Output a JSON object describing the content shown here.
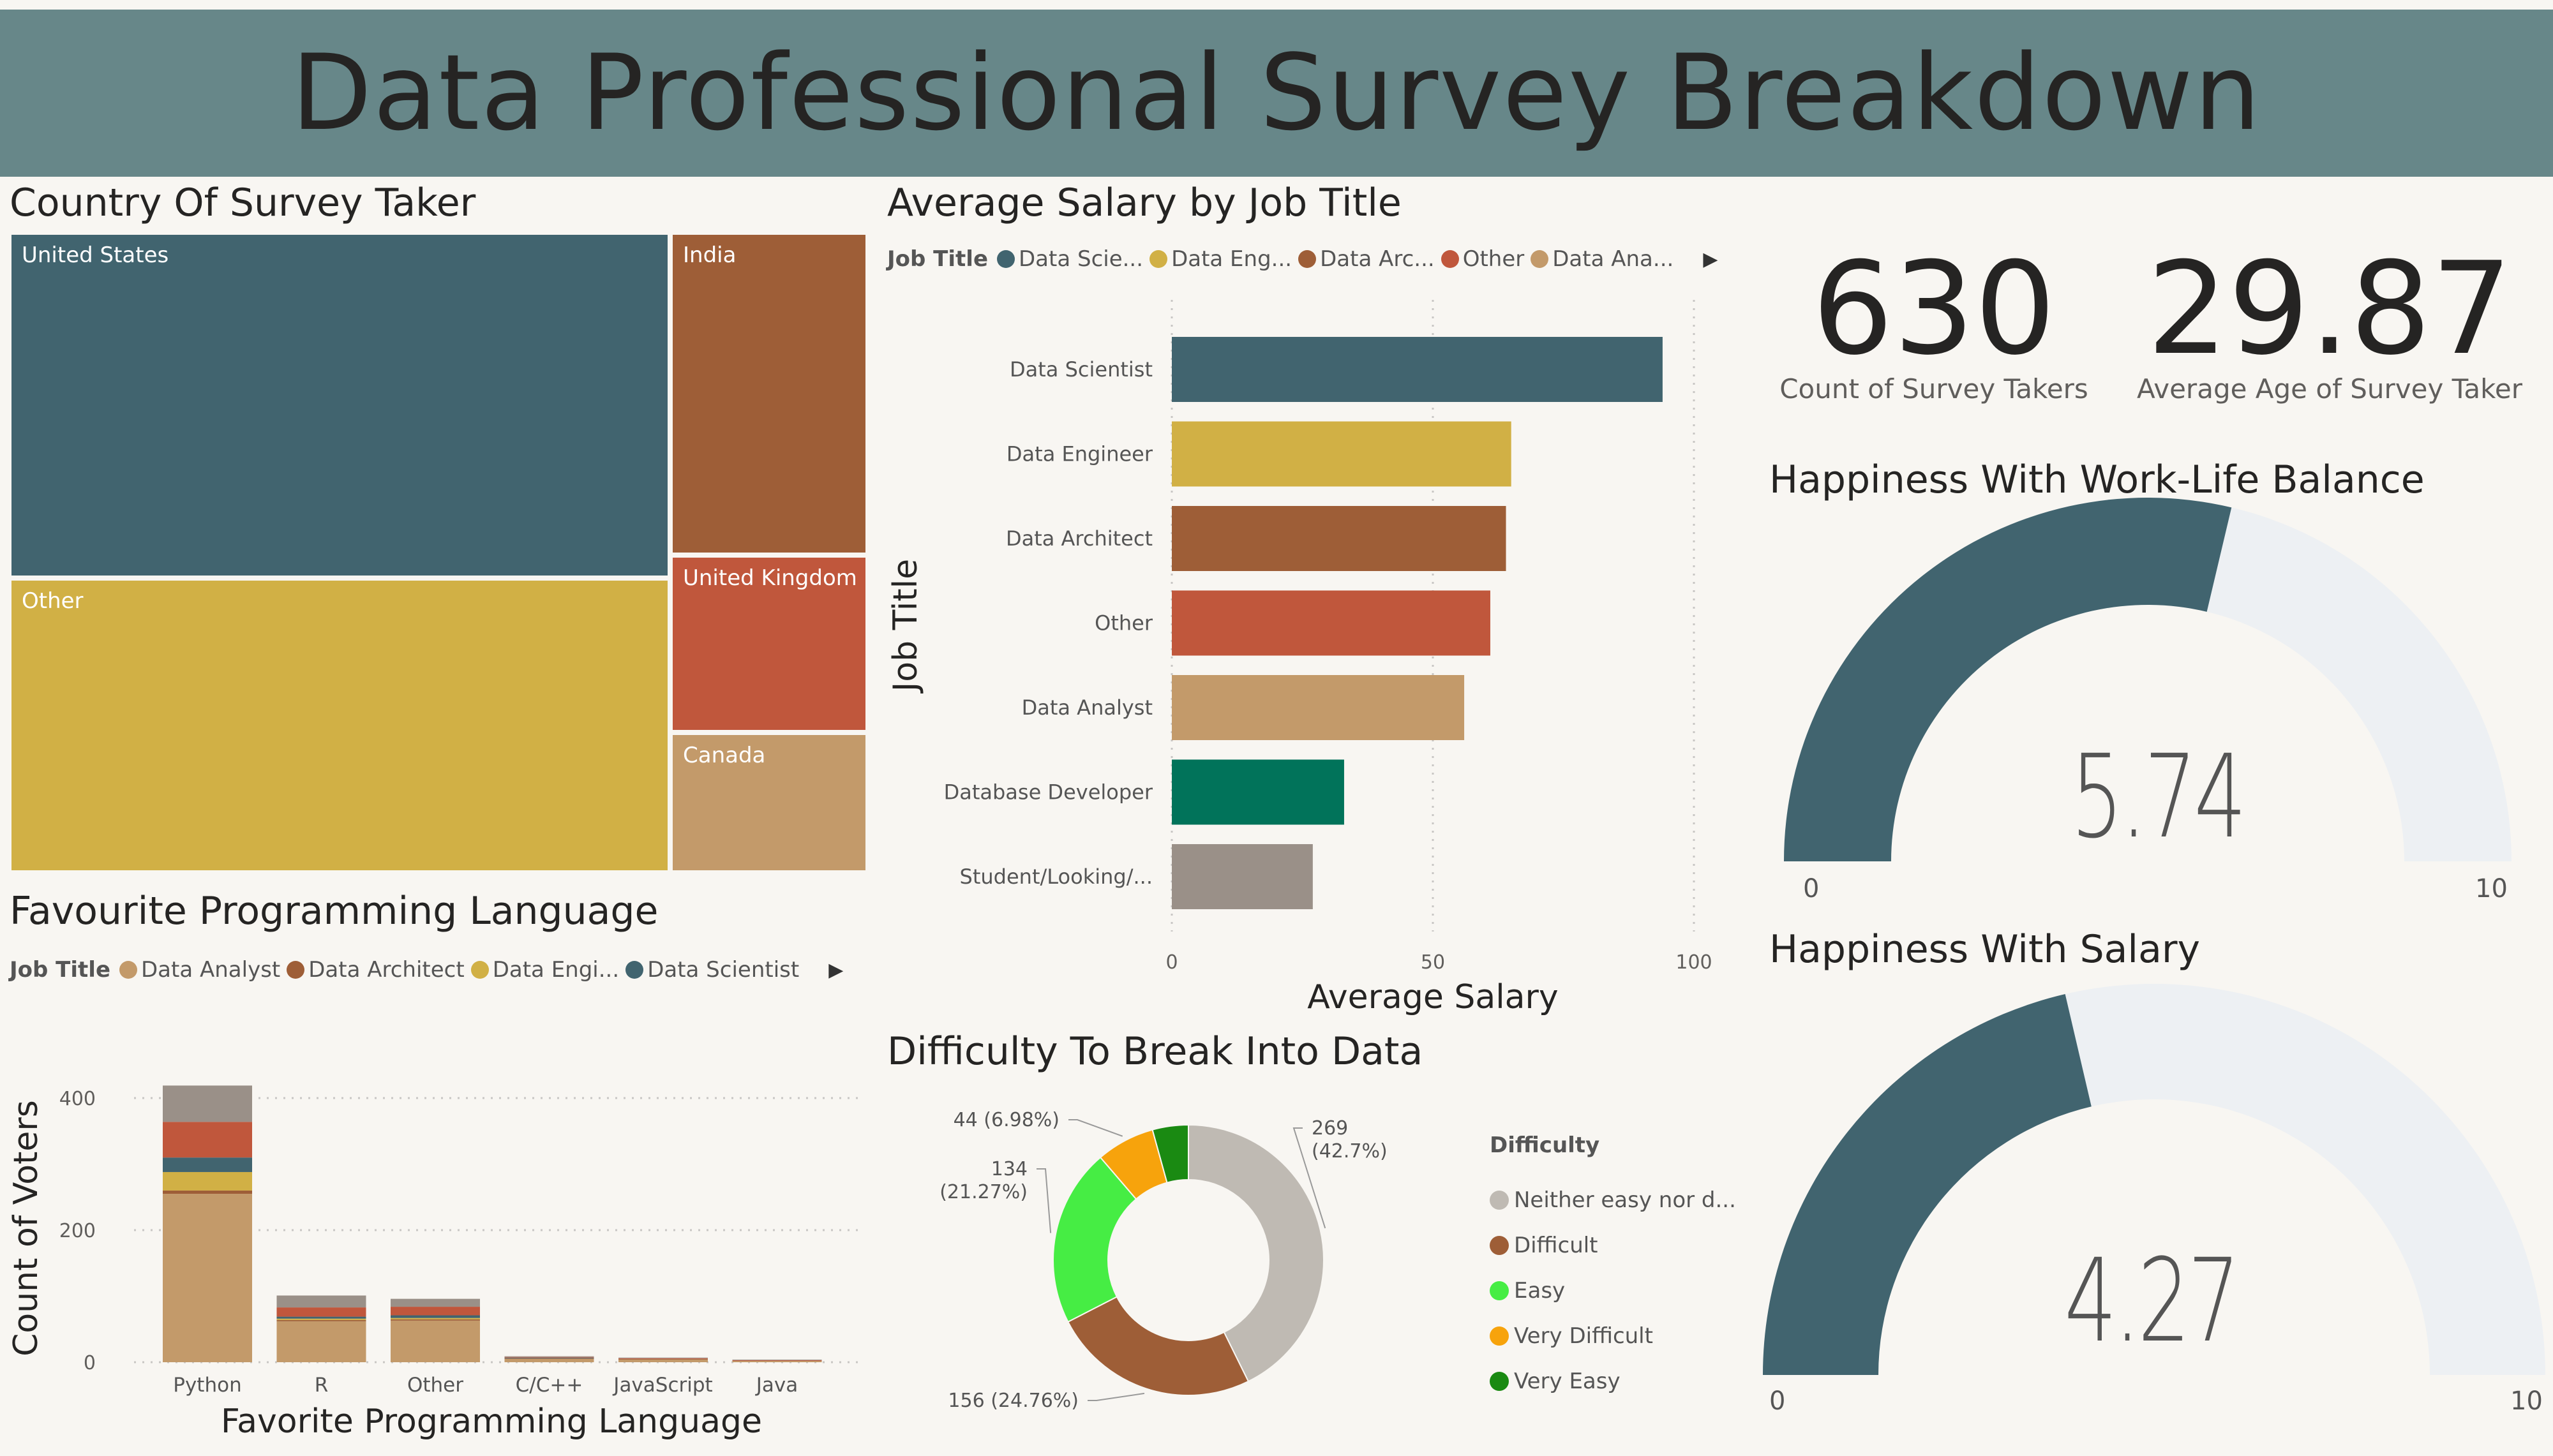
{
  "title": "Data Professional Survey Breakdown",
  "treemap": {
    "title": "Country Of Survey Taker",
    "items": [
      {
        "label": "United States",
        "color": "#41646f"
      },
      {
        "label": "India",
        "color": "#9e5e37"
      },
      {
        "label": "Other",
        "color": "#d1b045"
      },
      {
        "label": "United Kingdom",
        "color": "#c0573c"
      },
      {
        "label": "Canada",
        "color": "#c39a6a"
      }
    ]
  },
  "salary": {
    "title": "Average Salary by Job Title",
    "legend_title": "Job Title",
    "legend": [
      {
        "label": "Data Scie...",
        "color": "#41646f"
      },
      {
        "label": "Data Eng...",
        "color": "#d1b045"
      },
      {
        "label": "Data Arc...",
        "color": "#9e5e37"
      },
      {
        "label": "Other",
        "color": "#c0573c"
      },
      {
        "label": "Data Ana...",
        "color": "#c39a6a"
      }
    ],
    "arrow": "▶"
  },
  "language": {
    "title": "Favourite Programming Language",
    "legend_title": "Job Title",
    "legend": [
      {
        "label": "Data Analyst",
        "color": "#c39a6a"
      },
      {
        "label": "Data Architect",
        "color": "#9e5e37"
      },
      {
        "label": "Data Engi...",
        "color": "#d1b045"
      },
      {
        "label": "Data Scientist",
        "color": "#41646f"
      }
    ],
    "arrow": "▶"
  },
  "difficulty": {
    "title": "Difficulty To Break Into Data",
    "legend_title": "Difficulty",
    "legend": [
      {
        "label": "Neither easy nor d...",
        "color": "#bfbab3"
      },
      {
        "label": "Difficult",
        "color": "#9e5e37"
      },
      {
        "label": "Easy",
        "color": "#46ed44"
      },
      {
        "label": "Very Difficult",
        "color": "#f7a30c"
      },
      {
        "label": "Very Easy",
        "color": "#1a8a12"
      }
    ]
  },
  "kpis": [
    {
      "value": "630",
      "label": "Count of Survey Takers"
    },
    {
      "value": "29.87",
      "label": "Average Age of Survey Taker"
    }
  ],
  "gauges": [
    {
      "title": "Happiness With Work-Life Balance",
      "value_text": "5.74",
      "min_label": "0",
      "max_label": "10"
    },
    {
      "title": "Happiness With Salary",
      "value_text": "4.27",
      "min_label": "0",
      "max_label": "10"
    }
  ],
  "chart_data": [
    {
      "type": "treemap",
      "title": "Country Of Survey Taker",
      "categories": [
        "United States",
        "Other",
        "India",
        "United Kingdom",
        "Canada"
      ],
      "values": [
        261,
        197,
        74,
        37,
        26
      ]
    },
    {
      "type": "bar",
      "orientation": "horizontal",
      "title": "Average Salary by Job Title",
      "categories": [
        "Data Scientist",
        "Data Engineer",
        "Data Architect",
        "Other",
        "Data Analyst",
        "Database Developer",
        "Student/Looking/..."
      ],
      "values": [
        94,
        65,
        64,
        61,
        56,
        33,
        27
      ],
      "colors": [
        "#41646f",
        "#d1b045",
        "#9e5e37",
        "#c0573c",
        "#c39a6a",
        "#01735a",
        "#9a9088"
      ],
      "xlabel": "Average Salary",
      "ylabel": "Job Title",
      "xlim": [
        0,
        100
      ],
      "xticks": [
        0,
        50,
        100
      ],
      "grid": true
    },
    {
      "type": "bar",
      "stacked": true,
      "title": "Favourite Programming Language",
      "categories": [
        "Python",
        "R",
        "Other",
        "C/C++",
        "JavaScript",
        "Java"
      ],
      "series": [
        {
          "name": "Data Analyst",
          "color": "#c39a6a",
          "values": [
            255,
            62,
            63,
            5,
            4,
            2
          ]
        },
        {
          "name": "Data Architect",
          "color": "#9e5e37",
          "values": [
            5,
            2,
            2,
            1,
            1,
            0
          ]
        },
        {
          "name": "Data Engineer",
          "color": "#d1b045",
          "values": [
            28,
            2,
            2,
            0,
            0,
            0
          ]
        },
        {
          "name": "Data Scientist",
          "color": "#41646f",
          "values": [
            22,
            3,
            4,
            1,
            0,
            0
          ]
        },
        {
          "name": "Other",
          "color": "#c0573c",
          "values": [
            54,
            14,
            13,
            1,
            1,
            1
          ]
        },
        {
          "name": "Student/Looking",
          "color": "#9a9088",
          "values": [
            55,
            18,
            12,
            1,
            1,
            1
          ]
        }
      ],
      "xlabel": "Favorite Programming Language",
      "ylabel": "Count of Voters",
      "ylim": [
        0,
        430
      ],
      "yticks": [
        0,
        200,
        400
      ],
      "grid": true
    },
    {
      "type": "pie",
      "donut": true,
      "title": "Difficulty To Break Into Data",
      "categories": [
        "Neither easy nor difficult",
        "Difficult",
        "Easy",
        "Very Difficult",
        "Very Easy"
      ],
      "values": [
        269,
        156,
        134,
        44,
        27
      ],
      "colors": [
        "#bfbab3",
        "#9e5e37",
        "#46ed44",
        "#f7a30c",
        "#1a8a12"
      ],
      "data_labels": [
        {
          "count": "269",
          "pct": "(42.7%)"
        },
        {
          "count": "156",
          "pct": "(24.76%)"
        },
        {
          "count": "134",
          "pct": "(21.27%)"
        },
        {
          "count": "44",
          "pct": "(6.98%)"
        }
      ]
    },
    {
      "type": "gauge",
      "title": "Happiness With Work-Life Balance",
      "value": 5.74,
      "min": 0,
      "max": 10
    },
    {
      "type": "gauge",
      "title": "Happiness With Salary",
      "value": 4.27,
      "min": 0,
      "max": 10
    }
  ]
}
